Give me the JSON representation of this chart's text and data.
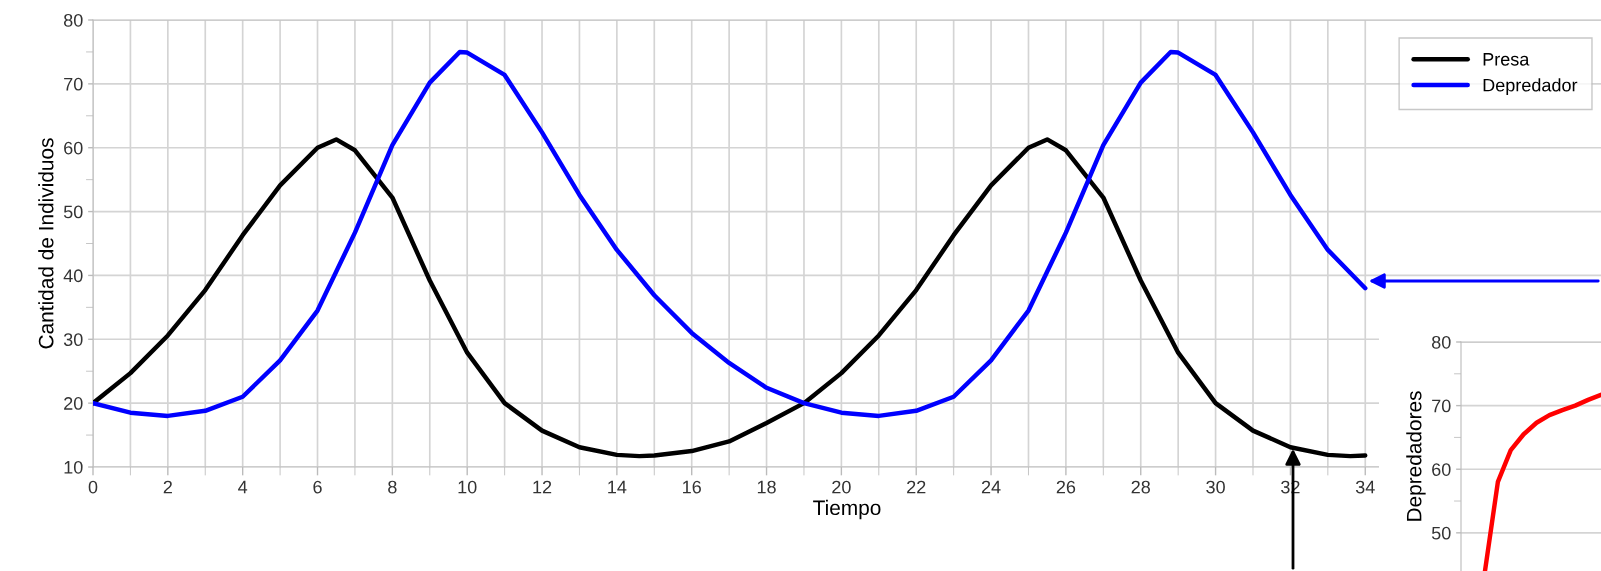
{
  "chart_data": [
    {
      "type": "line",
      "xlabel": "Tiempo",
      "ylabel": "Cantidad de Individuos",
      "xlim": [
        0,
        40.3
      ],
      "ylim": [
        10,
        80
      ],
      "xticks": [
        0,
        2,
        4,
        6,
        8,
        10,
        12,
        14,
        16,
        18,
        20,
        22,
        24,
        26,
        28,
        30,
        32,
        34
      ],
      "yticks": [
        10,
        20,
        30,
        40,
        50,
        60,
        70,
        80
      ],
      "grid": true,
      "legend": "top right",
      "line_style": "solid",
      "marker": "none",
      "series": [
        {
          "name": "Presa",
          "color": "#000000",
          "x": [
            0,
            1,
            2,
            3,
            4,
            5,
            6,
            6.5,
            7,
            8,
            9,
            10,
            11,
            12,
            13,
            14,
            14.6,
            15,
            16,
            17,
            18,
            19,
            20,
            21,
            22,
            23,
            24,
            25,
            25.5,
            26,
            27,
            28,
            29,
            30,
            31,
            32,
            33,
            33.6,
            34
          ],
          "values": [
            20,
            24.7,
            30.6,
            37.7,
            46.3,
            54.1,
            60,
            61.3,
            59.6,
            52.2,
            39.2,
            27.9,
            20,
            15.7,
            13.1,
            11.9,
            11.7,
            11.8,
            12.5,
            14,
            16.9,
            20,
            24.7,
            30.6,
            37.7,
            46.3,
            54.1,
            60,
            61.3,
            59.6,
            52.2,
            39.2,
            27.9,
            20,
            15.7,
            13.1,
            11.9,
            11.7,
            11.8
          ]
        },
        {
          "name": "Depredador",
          "color": "#0000ff",
          "x": [
            0,
            1,
            2,
            3,
            4,
            5,
            6,
            7,
            8,
            9,
            9.8,
            10,
            11,
            12,
            13,
            14,
            15,
            16,
            17,
            18,
            19,
            20,
            21,
            22,
            23,
            24,
            25,
            26,
            27,
            28,
            28.8,
            29,
            30,
            31,
            32,
            33,
            34
          ],
          "values": [
            20,
            18.5,
            18,
            18.8,
            21,
            26.7,
            34.5,
            46.7,
            60.4,
            70.2,
            75,
            74.9,
            71.4,
            62.4,
            52.6,
            44,
            36.9,
            31,
            26.3,
            22.4,
            20,
            18.5,
            18,
            18.8,
            21,
            26.7,
            34.5,
            46.7,
            60.4,
            70.2,
            75,
            74.9,
            71.4,
            62.4,
            52.6,
            44,
            38
          ]
        }
      ]
    },
    {
      "type": "line",
      "ylabel": "Depredadores",
      "categories": [
        null,
        null,
        null,
        null,
        null,
        null,
        null,
        null,
        null,
        null
      ],
      "ylim": [
        44,
        80
      ],
      "yticks": [
        50,
        60,
        70,
        80
      ],
      "grid": "y",
      "tick_labels": "y",
      "marker": "none",
      "line_style": "solid",
      "series": [
        {
          "color": "#ff0000",
          "values": [
            44,
            58,
            63,
            65.5,
            67.3,
            68.5,
            69.3,
            70,
            70.9,
            71.7
          ]
        }
      ]
    }
  ]
}
